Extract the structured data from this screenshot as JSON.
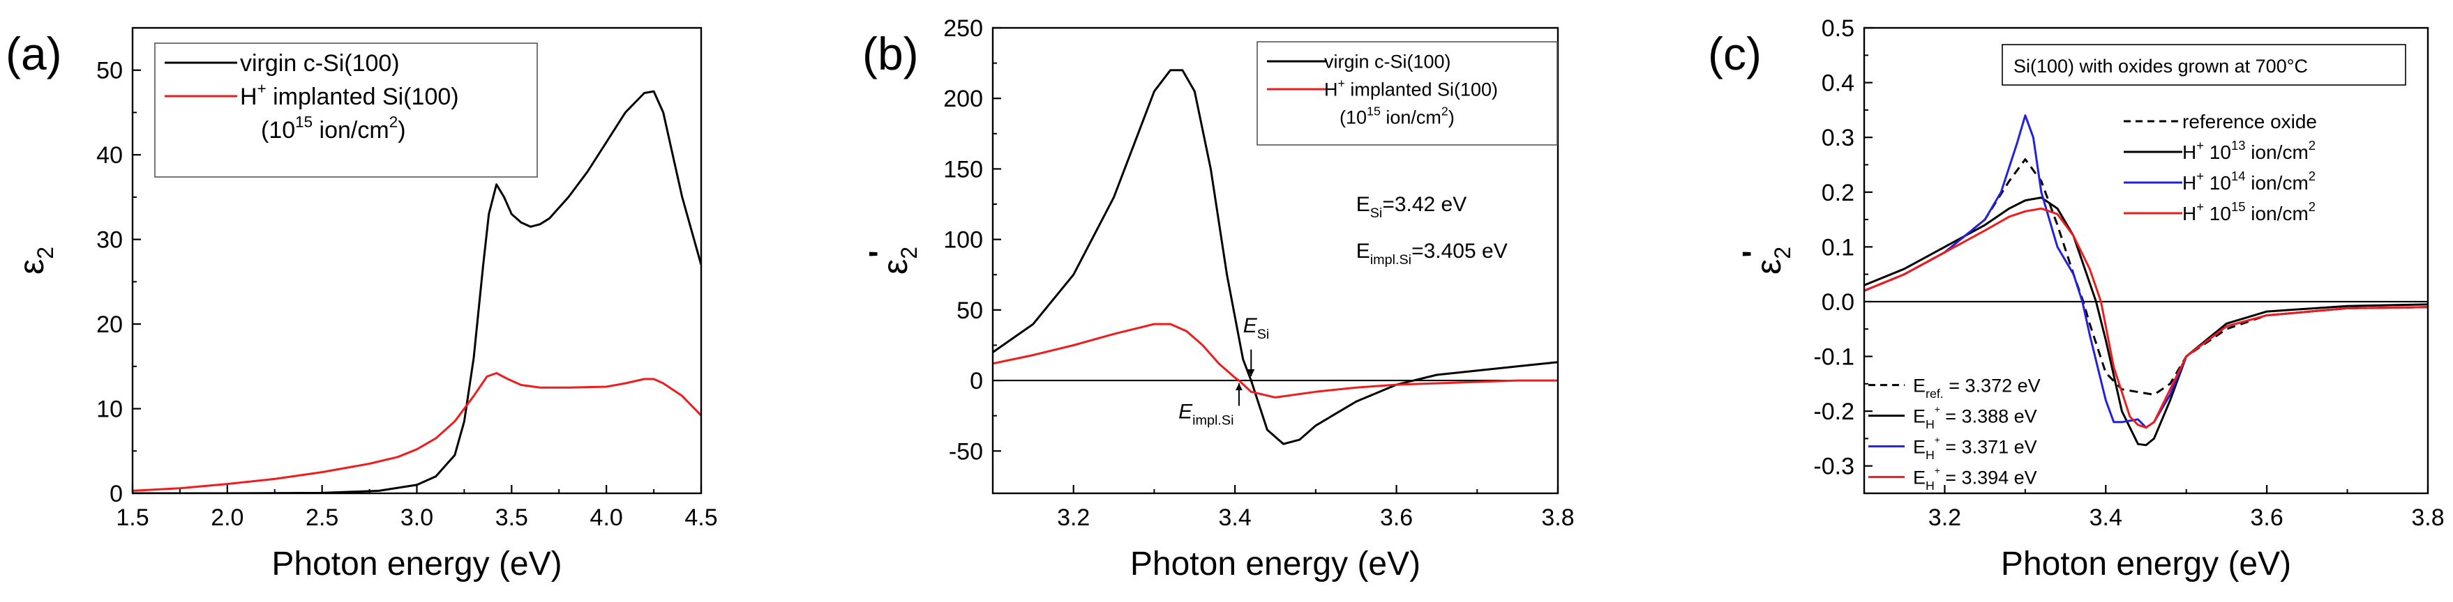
{
  "colors": {
    "black": "#000000",
    "red": "#ee1c1c",
    "blue": "#2222dd",
    "axis": "#000000"
  },
  "chart_data": [
    {
      "type": "line",
      "panel_label": "(a)",
      "xlabel": "Photon energy (eV)",
      "ylabel_main": "ε",
      "ylabel_sub": "2",
      "ylabel_sup": "",
      "xlim": [
        1.5,
        4.5
      ],
      "ylim": [
        0,
        55
      ],
      "x_ticks": [
        1.5,
        2.0,
        2.5,
        3.0,
        3.5,
        4.0,
        4.5
      ],
      "x_tick_labels": [
        "1.5",
        "2.0",
        "2.5",
        "3.0",
        "3.5",
        "4.0",
        "4.5"
      ],
      "y_ticks": [
        0,
        10,
        20,
        30,
        40,
        50
      ],
      "y_tick_labels": [
        "0",
        "10",
        "20",
        "30",
        "40",
        "50"
      ],
      "legend_position": "top-left",
      "legend": [
        {
          "color": "#000000",
          "parts": [
            [
              "virgin c-Si(100)",
              "n"
            ]
          ]
        },
        {
          "color": "#ee1c1c",
          "parts": [
            [
              "H",
              "n"
            ],
            [
              "+",
              "sup"
            ],
            [
              " implanted Si(100)",
              "n"
            ]
          ]
        },
        {
          "color": "",
          "parts": [
            [
              "(10",
              "n"
            ],
            [
              "15",
              "sup"
            ],
            [
              " ion/cm",
              "n"
            ],
            [
              "2",
              "sup"
            ],
            [
              ")",
              "n"
            ]
          ]
        }
      ],
      "annotations": [],
      "series": [
        {
          "color": "#000000",
          "x": [
            1.5,
            2.0,
            2.5,
            2.8,
            3.0,
            3.1,
            3.2,
            3.25,
            3.3,
            3.35,
            3.38,
            3.42,
            3.46,
            3.5,
            3.55,
            3.6,
            3.65,
            3.7,
            3.8,
            3.9,
            4.0,
            4.1,
            4.2,
            4.25,
            4.3,
            4.35,
            4.4,
            4.45,
            4.5
          ],
          "y": [
            0,
            0,
            0.05,
            0.3,
            1.0,
            2.0,
            4.5,
            8.5,
            16,
            27,
            33,
            36.5,
            35,
            33,
            32,
            31.5,
            31.8,
            32.5,
            35,
            38,
            41.5,
            45,
            47.3,
            47.5,
            45,
            40,
            35,
            31,
            27
          ]
        },
        {
          "color": "#ee1c1c",
          "x": [
            1.5,
            1.75,
            2.0,
            2.25,
            2.5,
            2.75,
            2.9,
            3.0,
            3.1,
            3.2,
            3.3,
            3.37,
            3.42,
            3.48,
            3.55,
            3.65,
            3.8,
            4.0,
            4.1,
            4.2,
            4.25,
            4.3,
            4.4,
            4.5
          ],
          "y": [
            0.3,
            0.6,
            1.1,
            1.7,
            2.5,
            3.5,
            4.3,
            5.2,
            6.5,
            8.5,
            11.5,
            13.8,
            14.2,
            13.5,
            12.8,
            12.5,
            12.5,
            12.6,
            13.0,
            13.5,
            13.5,
            13.0,
            11.5,
            9.2
          ]
        }
      ]
    },
    {
      "type": "line",
      "panel_label": "(b)",
      "xlabel": "Photon energy (eV)",
      "ylabel_main": "ε",
      "ylabel_sub": "2",
      "ylabel_sup": "'",
      "xlim": [
        3.1,
        3.8
      ],
      "ylim": [
        -80,
        250
      ],
      "x_ticks": [
        3.2,
        3.4,
        3.6,
        3.8
      ],
      "x_tick_labels": [
        "3.2",
        "3.4",
        "3.6",
        "3.8"
      ],
      "y_ticks": [
        -50,
        0,
        50,
        100,
        150,
        200,
        250
      ],
      "y_tick_labels": [
        "-50",
        "0",
        "50",
        "100",
        "150",
        "200",
        "250"
      ],
      "zero_line": true,
      "legend_position": "top-right",
      "legend": [
        {
          "color": "#000000",
          "parts": [
            [
              "virgin c-Si(100)",
              "n"
            ]
          ]
        },
        {
          "color": "#ee1c1c",
          "parts": [
            [
              "H",
              "n"
            ],
            [
              "+",
              "sup"
            ],
            [
              " implanted Si(100)",
              "n"
            ]
          ]
        },
        {
          "color": "",
          "parts": [
            [
              "(10",
              "n"
            ],
            [
              "15",
              "sup"
            ],
            [
              " ion/cm",
              "n"
            ],
            [
              "2",
              "sup"
            ],
            [
              ")",
              "n"
            ]
          ]
        }
      ],
      "annotations": [
        {
          "at": [
            3.55,
            120
          ],
          "color": "#000000",
          "size": 30,
          "parts": [
            [
              "E",
              "n"
            ],
            [
              "Si",
              "sub"
            ],
            [
              "=3.42 eV",
              "n"
            ]
          ]
        },
        {
          "at": [
            3.55,
            87
          ],
          "color": "#ee1c1c",
          "size": 30,
          "parts": [
            [
              "E",
              "n"
            ],
            [
              "impl.Si",
              "sub"
            ],
            [
              "=3.405 eV",
              "n"
            ]
          ]
        },
        {
          "at": [
            3.41,
            34
          ],
          "color": "#000000",
          "size": 30,
          "italic": true,
          "parts": [
            [
              "E",
              "i"
            ],
            [
              "Si",
              "sub"
            ]
          ]
        },
        {
          "at": [
            3.33,
            -27
          ],
          "color": "#000000",
          "size": 30,
          "italic": true,
          "parts": [
            [
              "E",
              "i"
            ],
            [
              "impl.Si",
              "sub"
            ]
          ]
        }
      ],
      "series": [
        {
          "color": "#000000",
          "x": [
            3.1,
            3.15,
            3.2,
            3.25,
            3.28,
            3.3,
            3.32,
            3.335,
            3.35,
            3.37,
            3.39,
            3.41,
            3.42,
            3.44,
            3.46,
            3.48,
            3.5,
            3.55,
            3.6,
            3.65,
            3.7,
            3.75,
            3.8
          ],
          "y": [
            20,
            40,
            75,
            130,
            175,
            205,
            220,
            220,
            205,
            150,
            75,
            15,
            0,
            -35,
            -45,
            -42,
            -32,
            -15,
            -3,
            4,
            7,
            10,
            13
          ]
        },
        {
          "color": "#ee1c1c",
          "x": [
            3.1,
            3.15,
            3.2,
            3.25,
            3.3,
            3.32,
            3.34,
            3.36,
            3.38,
            3.4,
            3.405,
            3.42,
            3.45,
            3.5,
            3.55,
            3.6,
            3.65,
            3.7,
            3.75,
            3.8
          ],
          "y": [
            12,
            18,
            25,
            33,
            40,
            40,
            35,
            25,
            12,
            2,
            0,
            -8,
            -12,
            -8,
            -5,
            -3,
            -2,
            -1,
            0,
            0
          ]
        }
      ]
    },
    {
      "type": "line",
      "panel_label": "(c)",
      "xlabel": "Photon energy (eV)",
      "ylabel_main": "ε",
      "ylabel_sub": "2",
      "ylabel_sup": "'",
      "xlim": [
        3.1,
        3.8
      ],
      "ylim": [
        -0.35,
        0.5
      ],
      "x_ticks": [
        3.2,
        3.4,
        3.6,
        3.8
      ],
      "x_tick_labels": [
        "3.2",
        "3.4",
        "3.6",
        "3.8"
      ],
      "y_ticks": [
        -0.3,
        -0.2,
        -0.1,
        0.0,
        0.1,
        0.2,
        0.3,
        0.4,
        0.5
      ],
      "y_tick_labels": [
        "-0.3",
        "-0.2",
        "-0.1",
        "0.0",
        "0.1",
        "0.2",
        "0.3",
        "0.4",
        "0.5"
      ],
      "zero_line": true,
      "title_box": "Si(100) with oxides grown at 700°C",
      "legend_position": "top-right",
      "legend": [
        {
          "color": "#000000",
          "dashed": true,
          "parts": [
            [
              "reference oxide",
              "n"
            ]
          ]
        },
        {
          "color": "#000000",
          "parts": [
            [
              "H",
              "n"
            ],
            [
              "+",
              "sup"
            ],
            [
              " 10",
              "n"
            ],
            [
              "13",
              "sup"
            ],
            [
              " ion/cm",
              "n"
            ],
            [
              "2",
              "sup"
            ]
          ]
        },
        {
          "color": "#2222dd",
          "parts": [
            [
              "H",
              "n"
            ],
            [
              "+",
              "sup"
            ],
            [
              " 10",
              "n"
            ],
            [
              "14",
              "sup"
            ],
            [
              " ion/cm",
              "n"
            ],
            [
              "2",
              "sup"
            ]
          ]
        },
        {
          "color": "#ee1c1c",
          "parts": [
            [
              "H",
              "n"
            ],
            [
              "+",
              "sup"
            ],
            [
              " 10",
              "n"
            ],
            [
              "15",
              "sup"
            ],
            [
              " ion/cm",
              "n"
            ],
            [
              "2",
              "sup"
            ]
          ]
        }
      ],
      "energy_legend": [
        {
          "color": "#000000",
          "dashed": true,
          "parts": [
            [
              "E",
              "n"
            ],
            [
              "ref.",
              "sub"
            ],
            [
              " = 3.372 eV",
              "n"
            ]
          ]
        },
        {
          "color": "#000000",
          "parts": [
            [
              "E",
              "n"
            ],
            [
              "H",
              "sub"
            ],
            [
              "+",
              "subsup"
            ],
            [
              " = 3.388 eV",
              "n"
            ]
          ]
        },
        {
          "color": "#2222dd",
          "parts": [
            [
              "E",
              "n"
            ],
            [
              "H",
              "sub"
            ],
            [
              "+",
              "subsup"
            ],
            [
              " = 3.371 eV",
              "n"
            ]
          ]
        },
        {
          "color": "#ee1c1c",
          "parts": [
            [
              "E",
              "n"
            ],
            [
              "H",
              "sub"
            ],
            [
              "+",
              "subsup"
            ],
            [
              " = 3.394 eV",
              "n"
            ]
          ]
        }
      ],
      "annotations": [],
      "series": [
        {
          "color": "#000000",
          "dashed": true,
          "x": [
            3.1,
            3.15,
            3.2,
            3.25,
            3.28,
            3.3,
            3.32,
            3.34,
            3.36,
            3.372,
            3.38,
            3.4,
            3.42,
            3.44,
            3.46,
            3.48,
            3.5,
            3.55,
            3.6,
            3.7,
            3.8
          ],
          "y": [
            0.02,
            0.05,
            0.09,
            0.15,
            0.22,
            0.26,
            0.22,
            0.14,
            0.05,
            0.0,
            -0.04,
            -0.13,
            -0.16,
            -0.165,
            -0.17,
            -0.15,
            -0.1,
            -0.05,
            -0.025,
            -0.012,
            -0.01
          ]
        },
        {
          "color": "#000000",
          "x": [
            3.1,
            3.15,
            3.2,
            3.25,
            3.28,
            3.3,
            3.32,
            3.34,
            3.36,
            3.388,
            3.4,
            3.42,
            3.44,
            3.45,
            3.46,
            3.48,
            3.5,
            3.55,
            3.6,
            3.7,
            3.8
          ],
          "y": [
            0.03,
            0.06,
            0.1,
            0.14,
            0.17,
            0.185,
            0.19,
            0.17,
            0.12,
            0.0,
            -0.07,
            -0.2,
            -0.26,
            -0.262,
            -0.25,
            -0.18,
            -0.1,
            -0.04,
            -0.018,
            -0.008,
            -0.005
          ]
        },
        {
          "color": "#2222dd",
          "x": [
            3.1,
            3.15,
            3.2,
            3.25,
            3.27,
            3.29,
            3.3,
            3.31,
            3.32,
            3.34,
            3.36,
            3.371,
            3.38,
            3.4,
            3.41,
            3.42,
            3.44,
            3.45,
            3.46,
            3.48,
            3.5,
            3.55,
            3.6,
            3.7,
            3.8
          ],
          "y": [
            0.02,
            0.05,
            0.09,
            0.15,
            0.2,
            0.29,
            0.34,
            0.3,
            0.2,
            0.1,
            0.05,
            0.0,
            -0.06,
            -0.18,
            -0.22,
            -0.22,
            -0.215,
            -0.23,
            -0.22,
            -0.17,
            -0.1,
            -0.045,
            -0.025,
            -0.012,
            -0.01
          ]
        },
        {
          "color": "#ee1c1c",
          "x": [
            3.1,
            3.15,
            3.2,
            3.25,
            3.28,
            3.3,
            3.32,
            3.34,
            3.36,
            3.38,
            3.394,
            3.41,
            3.43,
            3.44,
            3.45,
            3.46,
            3.48,
            3.5,
            3.55,
            3.6,
            3.7,
            3.8
          ],
          "y": [
            0.02,
            0.05,
            0.09,
            0.13,
            0.155,
            0.165,
            0.17,
            0.16,
            0.12,
            0.06,
            0.0,
            -0.12,
            -0.21,
            -0.225,
            -0.23,
            -0.22,
            -0.16,
            -0.1,
            -0.045,
            -0.025,
            -0.012,
            -0.01
          ]
        }
      ]
    }
  ]
}
